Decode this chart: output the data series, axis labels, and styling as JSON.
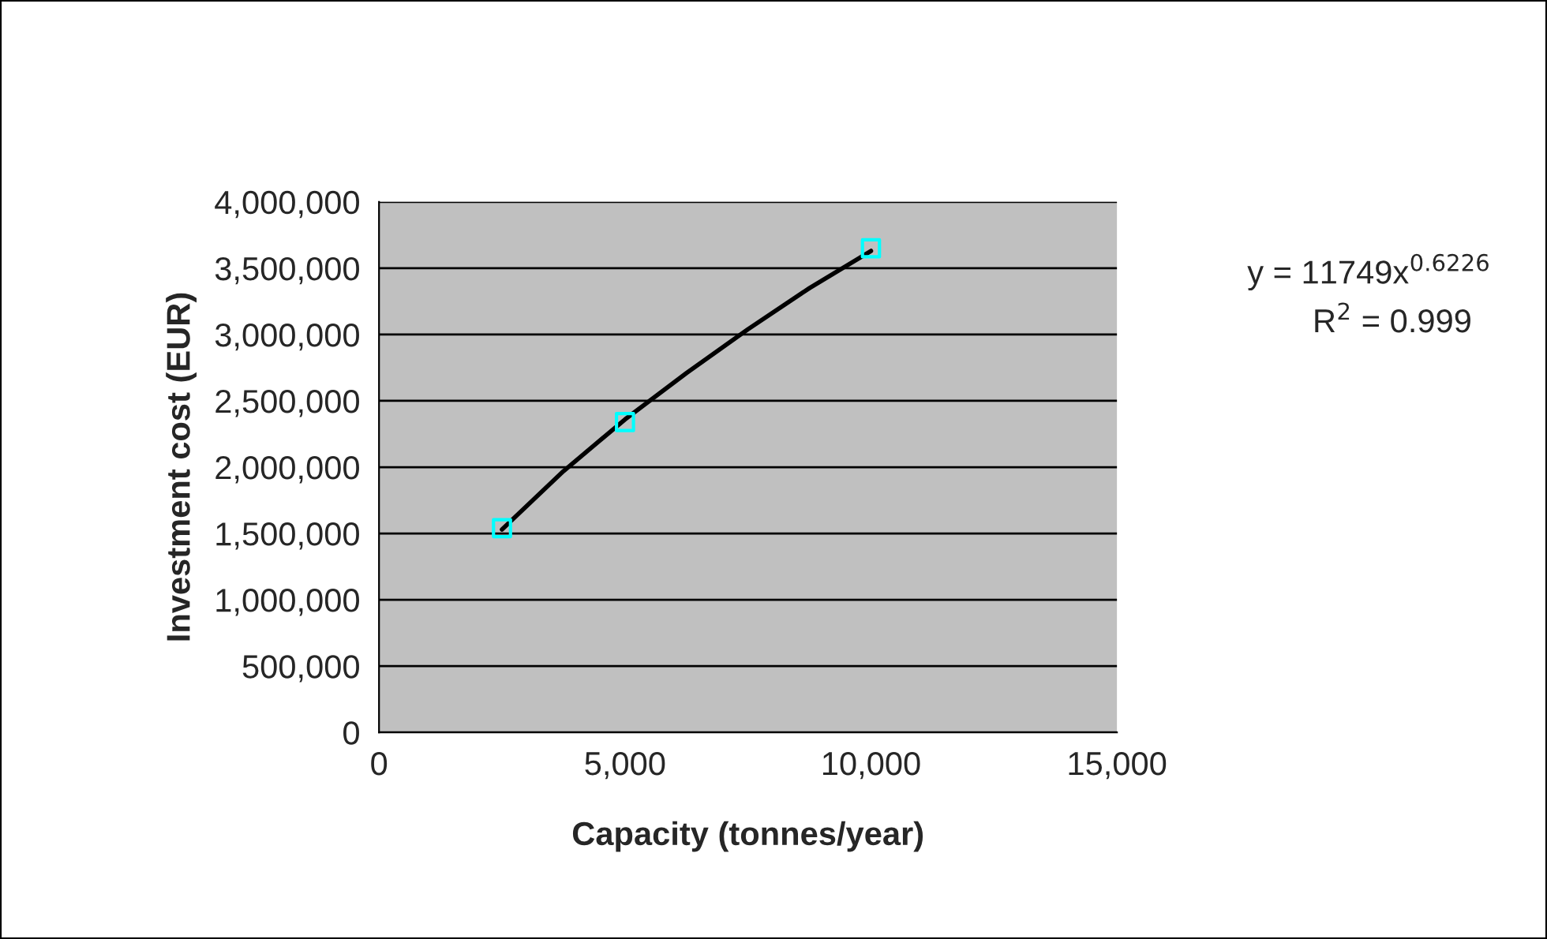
{
  "chart_data": {
    "type": "scatter",
    "xlabel": "Capacity (tonnes/year)",
    "ylabel": "Investment cost (EUR)",
    "series": [
      {
        "color": "#00ffff",
        "marker": "square",
        "x": [
          2500,
          5000,
          10000
        ],
        "values": [
          1540000,
          2340000,
          3650000
        ]
      },
      {
        "type": "line",
        "color": "#000000",
        "marker": "none",
        "line_style": "solid",
        "x": [
          2500,
          3750,
          5000,
          6250,
          7500,
          8750,
          10000
        ],
        "values": [
          1530000,
          1970000,
          2360000,
          2710000,
          3040000,
          3350000,
          3630000
        ]
      }
    ],
    "annotations": [
      "y = 11749x$^{0.6226}$",
      "R$^{2}$ = 0.999"
    ],
    "xlim": [
      0,
      15000
    ],
    "xticks": [
      0,
      {
        "value": 5000,
        "label": "5,000"
      },
      {
        "value": 10000,
        "label": "10,000"
      },
      {
        "value": 15000,
        "label": "15,000"
      }
    ],
    "ylim": [
      0,
      4000000
    ],
    "yticks": [
      0,
      {
        "value": 500000,
        "label": "500,000"
      },
      {
        "value": 1000000,
        "label": "1,000,000"
      },
      {
        "value": 1500000,
        "label": "1,500,000"
      },
      {
        "value": 2000000,
        "label": "2,000,000"
      },
      {
        "value": 2500000,
        "label": "2,500,000"
      },
      {
        "value": 3000000,
        "label": "3,000,000"
      },
      {
        "value": 3500000,
        "label": "3,500,000"
      },
      {
        "value": 4000000,
        "label": "4,000,000"
      }
    ],
    "grid": "y",
    "legend": false
  }
}
